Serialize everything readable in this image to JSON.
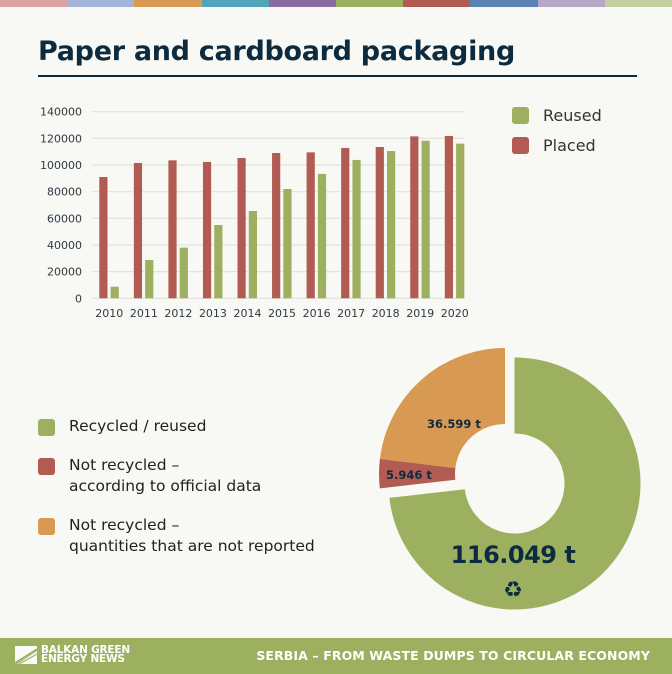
{
  "header": {
    "color_strip": [
      "#dca3a2",
      "#a3b5d6",
      "#d89a52",
      "#52a5b9",
      "#8a6ba0",
      "#9bb15f",
      "#b15b53",
      "#5883b3",
      "#b8a8c8",
      "#c3d09e"
    ],
    "title": "Paper and cardboard packaging"
  },
  "bar_legend": {
    "items": [
      {
        "label": "Reused",
        "color": "#9db060"
      },
      {
        "label": "Placed",
        "color": "#b15b53"
      }
    ]
  },
  "pie_legend": {
    "items": [
      {
        "lines": [
          "Recycled / reused"
        ],
        "color": "#9db060"
      },
      {
        "lines": [
          "Not recycled –",
          "according to official data"
        ],
        "color": "#b15b53"
      },
      {
        "lines": [
          "Not recycled –",
          "quantities that are not reported"
        ],
        "color": "#d89a52"
      }
    ]
  },
  "donut": {
    "labels": {
      "recycled": "116.049 t",
      "not_recycled_official": "5.946 t",
      "not_reported": "36.599 t"
    },
    "icon": "recycle-icon"
  },
  "footer": {
    "logo_line1": "BALKAN GREEN",
    "logo_line2": "ENERGY NEWS",
    "tagline": "SERBIA – FROM WASTE DUMPS TO CIRCULAR ECONOMY"
  },
  "chart_data": [
    {
      "type": "bar",
      "title": "Paper and cardboard packaging",
      "xlabel": "",
      "ylabel": "",
      "categories": [
        "2010",
        "2011",
        "2012",
        "2013",
        "2014",
        "2015",
        "2016",
        "2017",
        "2018",
        "2019",
        "2020"
      ],
      "series": [
        {
          "name": "Placed",
          "color": "#b15b53",
          "values": [
            91000,
            101500,
            103500,
            102300,
            105300,
            109000,
            109500,
            112800,
            113500,
            121500,
            121800
          ]
        },
        {
          "name": "Reused",
          "color": "#9db060",
          "values": [
            8700,
            28700,
            38000,
            55000,
            65500,
            82000,
            93300,
            103800,
            110500,
            118200,
            116049
          ]
        }
      ],
      "yticks": [
        0,
        20000,
        40000,
        60000,
        80000,
        100000,
        120000,
        140000
      ],
      "ylim": [
        0,
        140000
      ],
      "grid": true,
      "legend_position": "right"
    },
    {
      "type": "pie",
      "variant": "donut",
      "categories": [
        "Recycled / reused",
        "Not recycled – according to official data",
        "Not recycled – quantities that are not reported"
      ],
      "values": [
        116049,
        5946,
        36599
      ],
      "value_labels": [
        "116.049 t",
        "5.946 t",
        "36.599 t"
      ],
      "colors": [
        "#9db060",
        "#b15b53",
        "#d89a52"
      ],
      "unit": "t",
      "legend_position": "left"
    }
  ]
}
